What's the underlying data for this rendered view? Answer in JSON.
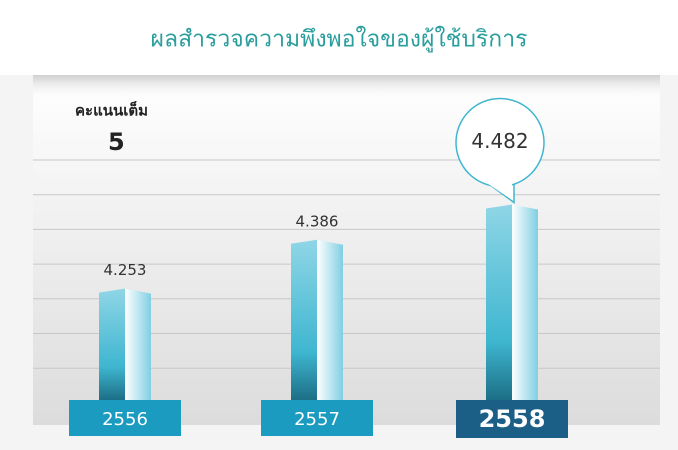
{
  "chart_data": {
    "type": "bar",
    "title": "ผลสำรวจความพึงพอใจของผู้ใช้บริการ",
    "full_score_label": "คะแนนเต็ม",
    "full_score": 5,
    "categories": [
      "2556",
      "2557",
      "2558"
    ],
    "values": [
      4.253,
      4.386,
      4.482
    ],
    "color": "#3fb6d0",
    "ylim": [
      3.95,
      4.78
    ],
    "grid": true
  }
}
